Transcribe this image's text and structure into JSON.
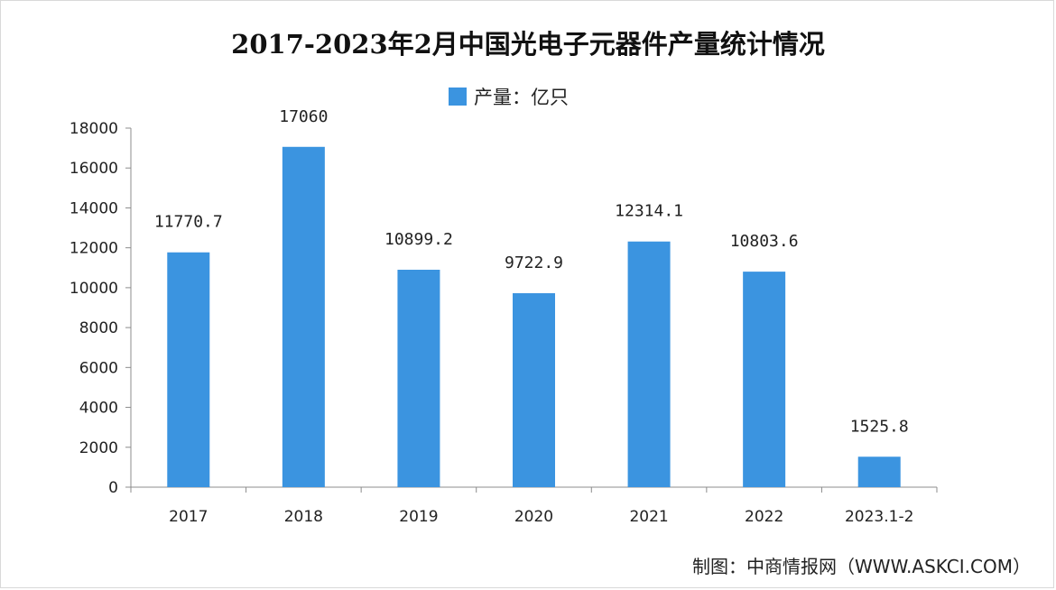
{
  "chart_data": {
    "type": "bar",
    "title": "2017-2023年2月中国光电子元器件产量统计情况",
    "legend": {
      "label": "产量：亿只",
      "position": "top-center"
    },
    "categories": [
      "2017",
      "2018",
      "2019",
      "2020",
      "2021",
      "2022",
      "2023.1-2"
    ],
    "values": [
      11770.7,
      17060,
      10899.2,
      9722.9,
      12314.1,
      10803.6,
      1525.8
    ],
    "value_labels": [
      "11770.7",
      "17060",
      "10899.2",
      "9722.9",
      "12314.1",
      "10803.6",
      "1525.8"
    ],
    "ylim": [
      0,
      18000
    ],
    "yticks": [
      0,
      2000,
      4000,
      6000,
      8000,
      10000,
      12000,
      14000,
      16000,
      18000
    ],
    "grid": false,
    "xlabel": "",
    "ylabel": "",
    "bar_color": "#3b94e0"
  },
  "source": "制图：中商情报网（WWW.ASKCI.COM）"
}
